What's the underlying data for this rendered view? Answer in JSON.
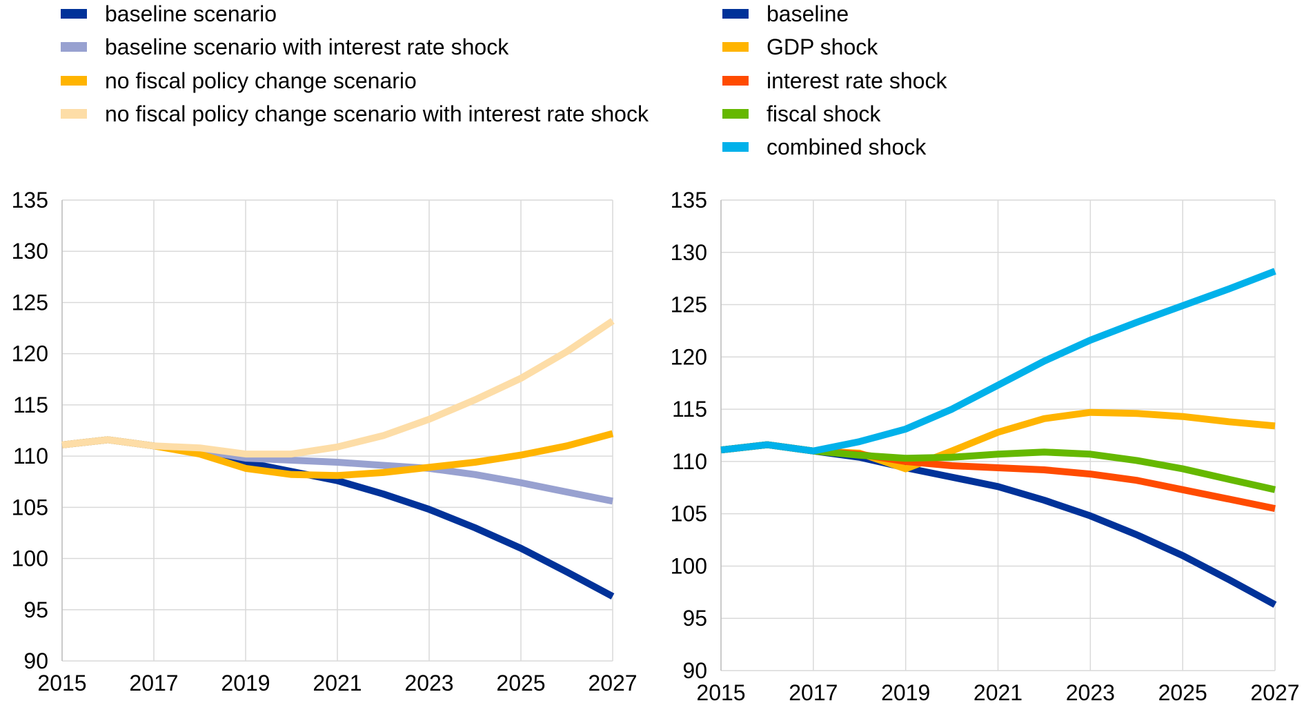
{
  "chart_data": [
    {
      "type": "line",
      "legend_position": "top",
      "grid": true,
      "xlim": [
        2015,
        2027
      ],
      "ylim": [
        90,
        135
      ],
      "x_ticks": [
        2015,
        2017,
        2019,
        2021,
        2023,
        2025,
        2027
      ],
      "y_ticks": [
        90,
        95,
        100,
        105,
        110,
        115,
        120,
        125,
        130,
        135
      ],
      "x": [
        2015,
        2016,
        2017,
        2018,
        2019,
        2020,
        2021,
        2022,
        2023,
        2024,
        2025,
        2026,
        2027
      ],
      "series": [
        {
          "name": "baseline scenario",
          "color": "#003299",
          "values": [
            111.1,
            111.6,
            111.0,
            110.4,
            109.4,
            108.5,
            107.6,
            106.3,
            104.8,
            103.0,
            101.0,
            98.7,
            96.3
          ]
        },
        {
          "name": "baseline scenario with interest rate shock",
          "color": "#98A1D0",
          "values": [
            111.1,
            111.6,
            111.0,
            110.6,
            109.8,
            109.6,
            109.4,
            109.1,
            108.8,
            108.2,
            107.4,
            106.5,
            105.6
          ]
        },
        {
          "name": "no fiscal policy change scenario",
          "color": "#FFB400",
          "values": [
            111.1,
            111.6,
            111.0,
            110.2,
            108.8,
            108.2,
            108.1,
            108.4,
            108.9,
            109.4,
            110.1,
            111.0,
            112.2
          ]
        },
        {
          "name": "no fiscal policy change scenario with interest rate shock",
          "color": "#FDDDA7",
          "values": [
            111.1,
            111.6,
            111.0,
            110.8,
            110.2,
            110.2,
            110.9,
            112.0,
            113.6,
            115.5,
            117.6,
            120.2,
            123.2
          ]
        }
      ]
    },
    {
      "type": "line",
      "legend_position": "top",
      "grid": true,
      "xlim": [
        2015,
        2027
      ],
      "ylim": [
        90,
        135
      ],
      "x_ticks": [
        2015,
        2017,
        2019,
        2021,
        2023,
        2025,
        2027
      ],
      "y_ticks": [
        90,
        95,
        100,
        105,
        110,
        115,
        120,
        125,
        130,
        135
      ],
      "x": [
        2015,
        2016,
        2017,
        2018,
        2019,
        2020,
        2021,
        2022,
        2023,
        2024,
        2025,
        2026,
        2027
      ],
      "series": [
        {
          "name": "baseline",
          "color": "#003299",
          "values": [
            111.1,
            111.6,
            111.0,
            110.4,
            109.4,
            108.5,
            107.6,
            106.3,
            104.8,
            103.0,
            101.0,
            98.7,
            96.3
          ]
        },
        {
          "name": "GDP shock",
          "color": "#FFB400",
          "values": [
            111.1,
            111.6,
            111.0,
            110.8,
            109.3,
            111.0,
            112.8,
            114.1,
            114.7,
            114.6,
            114.3,
            113.8,
            113.4
          ]
        },
        {
          "name": "interest rate shock",
          "color": "#FF4B00",
          "values": [
            111.1,
            111.6,
            111.0,
            110.7,
            110.0,
            109.6,
            109.4,
            109.2,
            108.8,
            108.2,
            107.3,
            106.4,
            105.5
          ]
        },
        {
          "name": "fiscal shock",
          "color": "#65B800",
          "values": [
            111.1,
            111.6,
            111.0,
            110.6,
            110.3,
            110.4,
            110.7,
            110.9,
            110.7,
            110.1,
            109.3,
            108.3,
            107.3
          ]
        },
        {
          "name": "combined shock",
          "color": "#00B1EA",
          "values": [
            111.1,
            111.6,
            111.0,
            111.9,
            113.1,
            115.0,
            117.3,
            119.6,
            121.6,
            123.3,
            124.9,
            126.5,
            128.2
          ]
        }
      ]
    }
  ]
}
